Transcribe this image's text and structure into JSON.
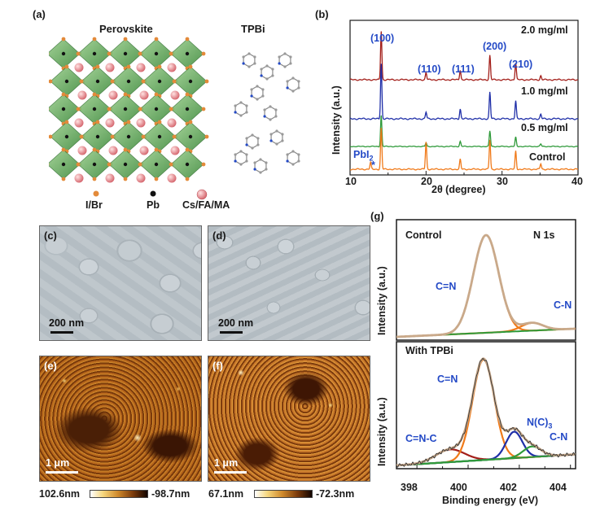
{
  "panels": {
    "a": {
      "label": "(a)",
      "left_title": "Perovskite",
      "right_title": "TPBi",
      "legend": [
        "I/Br",
        "Pb",
        "Cs/FA/MA"
      ]
    },
    "b": {
      "label": "(b)",
      "xlabel": "2θ (degree)",
      "ylabel": "Intensity (a.u.)",
      "series_labels": [
        "2.0 mg/ml",
        "1.0 mg/ml",
        "0.5 mg/ml",
        "Control"
      ],
      "peak_labels": [
        "(100)",
        "(110)",
        "(111)",
        "(200)",
        "(210)"
      ],
      "pbi2_label": "PbI",
      "pbi2_sub": "2",
      "pbi2_marker": "*",
      "x_ticks": [
        "10",
        "20",
        "30",
        "40"
      ]
    },
    "c": {
      "label": "(c)",
      "scalebar": "200 nm"
    },
    "d": {
      "label": "(d)",
      "scalebar": "200 nm"
    },
    "e": {
      "label": "(e)",
      "scalebar": "1 μm",
      "cbar_max": "102.6nm",
      "cbar_min": "-98.7nm"
    },
    "f": {
      "label": "(f)",
      "scalebar": "1 μm",
      "cbar_max": "67.1nm",
      "cbar_min": "-72.3nm"
    },
    "g": {
      "label": "(g)",
      "top_title": "Control",
      "element": "N 1s",
      "bottom_title": "With TPBi",
      "xlabel": "Binding energy (eV)",
      "ylabel": "Intensity (a.u.)",
      "top_peaks": [
        "C=N",
        "C-N"
      ],
      "bottom_peaks": [
        "C=N",
        "N(C)",
        "C-N",
        "C=N-C"
      ],
      "nc3_sub": "3",
      "x_ticks": [
        "398",
        "400",
        "402",
        "404"
      ]
    }
  },
  "chart_data": [
    {
      "type": "line",
      "panel": "b",
      "xlim": [
        10,
        40
      ],
      "x_axis_label": "2θ (degree)",
      "y_axis_label": "Intensity (a.u.)",
      "series": [
        {
          "name": "2.0 mg/ml",
          "color": "#a31f1a",
          "peaks": [
            [
              14.1,
              1.0
            ],
            [
              20.0,
              0.15
            ],
            [
              24.5,
              0.2
            ],
            [
              28.4,
              0.5
            ],
            [
              31.8,
              0.35
            ],
            [
              35.1,
              0.08
            ]
          ]
        },
        {
          "name": "1.0 mg/ml",
          "color": "#1f2fa8",
          "peaks": [
            [
              14.1,
              1.0
            ],
            [
              20.0,
              0.12
            ],
            [
              24.5,
              0.18
            ],
            [
              28.4,
              0.48
            ],
            [
              31.8,
              0.32
            ],
            [
              35.1,
              0.08
            ]
          ]
        },
        {
          "name": "0.5 mg/ml",
          "color": "#2f9a3a",
          "peaks": [
            [
              14.1,
              1.0
            ],
            [
              20.0,
              0.12
            ],
            [
              24.5,
              0.16
            ],
            [
              28.4,
              0.5
            ],
            [
              31.8,
              0.3
            ],
            [
              35.1,
              0.08
            ]
          ]
        },
        {
          "name": "Control",
          "color": "#f07a1a",
          "peaks": [
            [
              12.7,
              0.15
            ],
            [
              14.1,
              0.9
            ],
            [
              20.0,
              0.6
            ],
            [
              24.5,
              0.22
            ],
            [
              28.4,
              0.65
            ],
            [
              31.8,
              0.4
            ],
            [
              35.1,
              0.12
            ]
          ]
        }
      ]
    },
    {
      "type": "line",
      "panel": "g-top",
      "xlim": [
        397.2,
        404.2
      ],
      "components": [
        {
          "name": "C=N",
          "center": 400.7,
          "height": 1.0,
          "width": 0.7,
          "color": "#f07a1a"
        },
        {
          "name": "C-N",
          "center": 402.5,
          "height": 0.08,
          "width": 0.6,
          "color": "#f07a1a"
        }
      ]
    },
    {
      "type": "line",
      "panel": "g-bottom",
      "xlim": [
        397.2,
        404.2
      ],
      "components": [
        {
          "name": "C=N-C",
          "center": 399.3,
          "height": 0.12,
          "width": 0.8,
          "color": "#a31f1a"
        },
        {
          "name": "C=N",
          "center": 400.6,
          "height": 0.95,
          "width": 0.6,
          "color": "#f07a1a"
        },
        {
          "name": "N(C)3",
          "center": 401.8,
          "height": 0.25,
          "width": 0.45,
          "color": "#1f2fa8"
        },
        {
          "name": "C-N",
          "center": 402.5,
          "height": 0.1,
          "width": 0.5,
          "color": "#2f9a3a"
        }
      ]
    }
  ],
  "colors": {
    "axis": "#1a1a1a",
    "label_blue": "#2349c6",
    "fit_envelope": "#c9a98a",
    "raw_data": "#333333",
    "background_baseline": "#2f9a3a"
  }
}
